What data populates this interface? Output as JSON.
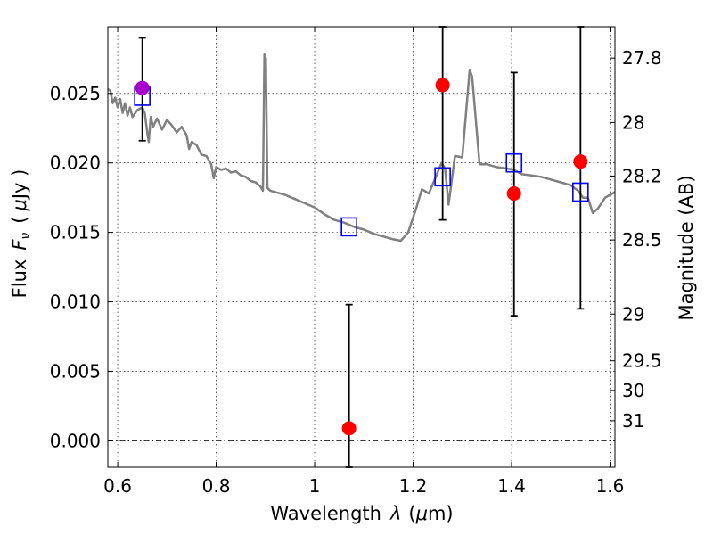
{
  "chart_data": {
    "type": "scatter",
    "title": "",
    "xlabel": "Wavelength",
    "xlabel_symbol": "λ",
    "xlabel_unit_open": "(",
    "xlabel_unit_mu": "μ",
    "xlabel_unit_rest": "m)",
    "ylabel": "Flux",
    "ylabel_symbol": "F",
    "ylabel_sub": "ν",
    "ylabel_unit_open": "(",
    "ylabel_unit_mu": "μ",
    "ylabel_unit_rest": "Jy )",
    "y2label": "Magnitude (AB)",
    "xlim": [
      0.58,
      1.61
    ],
    "ylim": [
      -0.0019,
      0.0298
    ],
    "grid": true,
    "x_ticks": [
      {
        "value": 0.6,
        "label": "0.6"
      },
      {
        "value": 0.8,
        "label": "0.8"
      },
      {
        "value": 1.0,
        "label": "1"
      },
      {
        "value": 1.2,
        "label": "1.2"
      },
      {
        "value": 1.4,
        "label": "1.4"
      },
      {
        "value": 1.6,
        "label": "1.6"
      }
    ],
    "y_ticks": [
      {
        "value": 0.0,
        "label": "0.000"
      },
      {
        "value": 0.005,
        "label": "0.005"
      },
      {
        "value": 0.01,
        "label": "0.010"
      },
      {
        "value": 0.015,
        "label": "0.015"
      },
      {
        "value": 0.02,
        "label": "0.020"
      },
      {
        "value": 0.025,
        "label": "0.025"
      }
    ],
    "y2_ticks": [
      {
        "mag": 27.8,
        "label": "27.8"
      },
      {
        "mag": 28.0,
        "label": "28"
      },
      {
        "mag": 28.2,
        "label": "28.2"
      },
      {
        "mag": 28.5,
        "label": "28.5"
      },
      {
        "mag": 29.0,
        "label": "29"
      },
      {
        "mag": 29.5,
        "label": "29.5"
      },
      {
        "mag": 30.0,
        "label": "30"
      },
      {
        "mag": 31.0,
        "label": "31"
      }
    ],
    "model_spectrum": {
      "color": "#808080",
      "points": [
        [
          0.58,
          0.0253
        ],
        [
          0.585,
          0.0252
        ],
        [
          0.59,
          0.0243
        ],
        [
          0.595,
          0.0247
        ],
        [
          0.6,
          0.024
        ],
        [
          0.605,
          0.0246
        ],
        [
          0.61,
          0.0236
        ],
        [
          0.615,
          0.0243
        ],
        [
          0.62,
          0.0234
        ],
        [
          0.625,
          0.024
        ],
        [
          0.63,
          0.0233
        ],
        [
          0.64,
          0.0238
        ],
        [
          0.65,
          0.024
        ],
        [
          0.655,
          0.0236
        ],
        [
          0.66,
          0.0222
        ],
        [
          0.663,
          0.0215
        ],
        [
          0.667,
          0.0233
        ],
        [
          0.672,
          0.0226
        ],
        [
          0.68,
          0.0232
        ],
        [
          0.69,
          0.0224
        ],
        [
          0.7,
          0.0231
        ],
        [
          0.71,
          0.0227
        ],
        [
          0.72,
          0.0222
        ],
        [
          0.73,
          0.0226
        ],
        [
          0.74,
          0.022
        ],
        [
          0.745,
          0.021
        ],
        [
          0.75,
          0.0215
        ],
        [
          0.76,
          0.0213
        ],
        [
          0.77,
          0.0206
        ],
        [
          0.78,
          0.0205
        ],
        [
          0.79,
          0.0199
        ],
        [
          0.795,
          0.0189
        ],
        [
          0.8,
          0.0197
        ],
        [
          0.81,
          0.0195
        ],
        [
          0.82,
          0.0196
        ],
        [
          0.83,
          0.0193
        ],
        [
          0.84,
          0.0194
        ],
        [
          0.85,
          0.0191
        ],
        [
          0.86,
          0.019
        ],
        [
          0.87,
          0.0187
        ],
        [
          0.88,
          0.0186
        ],
        [
          0.89,
          0.0183
        ],
        [
          0.895,
          0.018
        ],
        [
          0.898,
          0.0278
        ],
        [
          0.901,
          0.0275
        ],
        [
          0.904,
          0.0182
        ],
        [
          0.91,
          0.018
        ],
        [
          0.92,
          0.0179
        ],
        [
          0.94,
          0.0177
        ],
        [
          0.96,
          0.0174
        ],
        [
          0.98,
          0.0171
        ],
        [
          1.0,
          0.0168
        ],
        [
          1.02,
          0.0163
        ],
        [
          1.04,
          0.0159
        ],
        [
          1.06,
          0.0157
        ],
        [
          1.08,
          0.0154
        ],
        [
          1.1,
          0.0152
        ],
        [
          1.12,
          0.0149
        ],
        [
          1.14,
          0.0147
        ],
        [
          1.16,
          0.0145
        ],
        [
          1.175,
          0.0144
        ],
        [
          1.19,
          0.015
        ],
        [
          1.205,
          0.0166
        ],
        [
          1.218,
          0.0181
        ],
        [
          1.232,
          0.0178
        ],
        [
          1.245,
          0.0189
        ],
        [
          1.258,
          0.02
        ],
        [
          1.265,
          0.0196
        ],
        [
          1.272,
          0.017
        ],
        [
          1.285,
          0.0205
        ],
        [
          1.3,
          0.0204
        ],
        [
          1.315,
          0.0267
        ],
        [
          1.32,
          0.0262
        ],
        [
          1.335,
          0.0199
        ],
        [
          1.35,
          0.0199
        ],
        [
          1.37,
          0.0197
        ],
        [
          1.39,
          0.0196
        ],
        [
          1.405,
          0.0195
        ],
        [
          1.42,
          0.0192
        ],
        [
          1.44,
          0.0191
        ],
        [
          1.46,
          0.019
        ],
        [
          1.48,
          0.0188
        ],
        [
          1.5,
          0.0186
        ],
        [
          1.52,
          0.0184
        ],
        [
          1.535,
          0.018
        ],
        [
          1.545,
          0.0175
        ],
        [
          1.555,
          0.0175
        ],
        [
          1.565,
          0.0164
        ],
        [
          1.575,
          0.0167
        ],
        [
          1.59,
          0.0175
        ],
        [
          1.61,
          0.0179
        ]
      ]
    },
    "model_band_fluxes": {
      "color": "#0000ff",
      "points": [
        [
          0.65,
          0.0248
        ],
        [
          1.07,
          0.0154
        ],
        [
          1.26,
          0.019
        ],
        [
          1.405,
          0.02
        ],
        [
          1.54,
          0.0179
        ]
      ]
    },
    "observed": [
      {
        "x": 0.65,
        "y": 0.0254,
        "yerr_low": 0.0216,
        "yerr_high": 0.029,
        "color": "#aa00cc"
      },
      {
        "x": 1.07,
        "y": 0.0009,
        "yerr_low": -0.0019,
        "yerr_high": 0.0098,
        "color": "#ff0000"
      },
      {
        "x": 1.26,
        "y": 0.0256,
        "yerr_low": 0.0159,
        "yerr_high": 0.0298,
        "color": "#ff0000"
      },
      {
        "x": 1.405,
        "y": 0.0178,
        "yerr_low": 0.009,
        "yerr_high": 0.0265,
        "color": "#ff0000"
      },
      {
        "x": 1.54,
        "y": 0.0201,
        "yerr_low": 0.0095,
        "yerr_high": 0.0298,
        "color": "#ff0000"
      }
    ],
    "zero_line": {
      "value": 0.0,
      "style": "dash-dot"
    }
  }
}
